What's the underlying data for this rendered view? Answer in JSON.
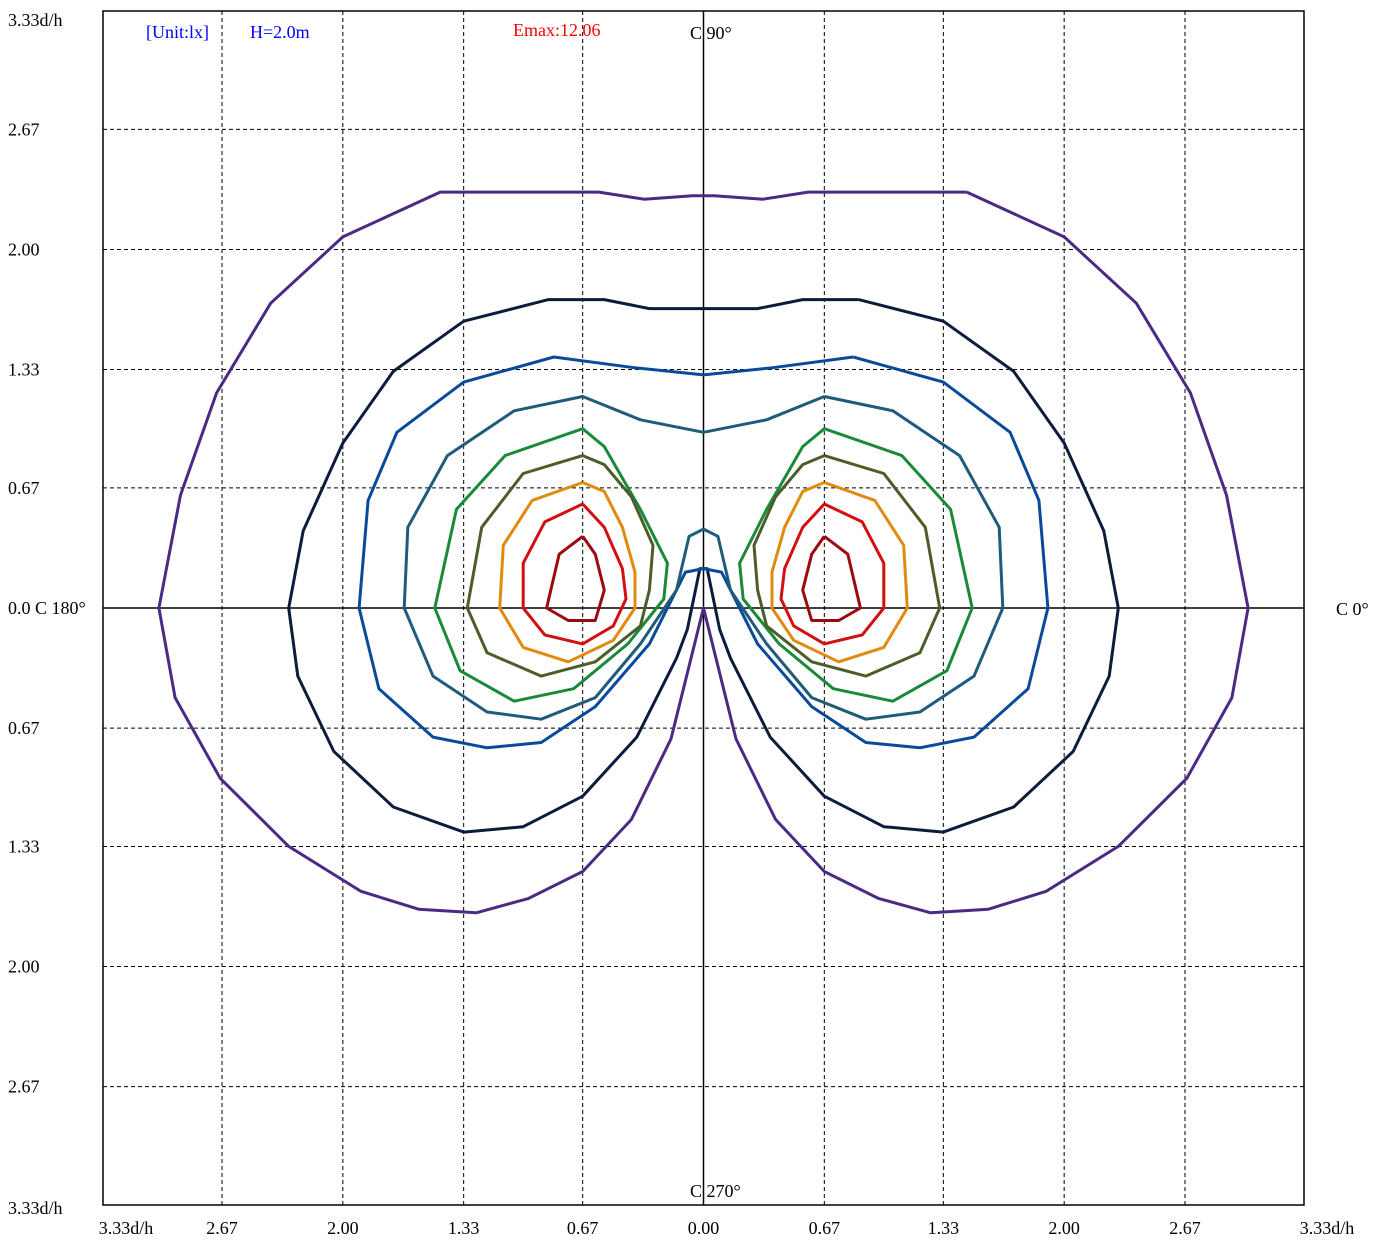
{
  "chart_data": {
    "type": "isolux_contour",
    "unit_label": "[Unit:lx]",
    "height_label": "H=2.0m",
    "emax_label": "Emax:12.06",
    "axis_end_label": "3.33d/h",
    "origin_label": "0.00",
    "c_labels": {
      "c0": "C 0°",
      "c90": "C 90°",
      "c180": "0.0 C 180°",
      "c270": "C 270°"
    },
    "ticks": [
      -3.33,
      -2.67,
      -2.0,
      -1.33,
      -0.67,
      0.0,
      0.67,
      1.33,
      2.0,
      2.67,
      3.33
    ],
    "tick_labels_y": [
      "3.33d/h",
      "2.67",
      "2.00",
      "1.33",
      "0.67",
      "0.0 C 180°",
      "0.67",
      "1.33",
      "2.00",
      "2.67",
      "3.33d/h"
    ],
    "tick_labels_x": [
      "3.33d/h",
      "2.67",
      "2.00",
      "1.33",
      "0.67",
      "0.00",
      "0.67",
      "1.33",
      "2.00",
      "2.67",
      "3.33d/h"
    ],
    "xlim": [
      -3.33,
      3.33
    ],
    "ylim": [
      -3.33,
      3.33
    ],
    "grid": true,
    "contours": [
      {
        "color": "#4b2a84",
        "points": [
          [
            1.46,
            2.32
          ],
          [
            0.58,
            2.32
          ],
          [
            0.33,
            2.28
          ],
          [
            0.06,
            2.3
          ],
          [
            -0.06,
            2.3
          ],
          [
            -0.33,
            2.28
          ],
          [
            -0.58,
            2.32
          ],
          [
            -1.46,
            2.32
          ],
          [
            -2.0,
            2.07
          ],
          [
            -2.4,
            1.7
          ],
          [
            -2.7,
            1.2
          ],
          [
            -2.9,
            0.63
          ],
          [
            -3.02,
            0.0
          ],
          [
            -2.93,
            -0.5
          ],
          [
            -2.68,
            -0.95
          ],
          [
            -2.3,
            -1.33
          ],
          [
            -1.9,
            -1.58
          ],
          [
            -1.58,
            -1.68
          ],
          [
            -1.26,
            -1.7
          ],
          [
            -0.97,
            -1.62
          ],
          [
            -0.67,
            -1.47
          ],
          [
            -0.4,
            -1.18
          ],
          [
            -0.18,
            -0.73
          ],
          [
            0.0,
            0.0
          ],
          [
            0.18,
            -0.73
          ],
          [
            0.4,
            -1.18
          ],
          [
            0.67,
            -1.47
          ],
          [
            0.97,
            -1.62
          ],
          [
            1.26,
            -1.7
          ],
          [
            1.58,
            -1.68
          ],
          [
            1.9,
            -1.58
          ],
          [
            2.3,
            -1.33
          ],
          [
            2.68,
            -0.95
          ],
          [
            2.93,
            -0.5
          ],
          [
            3.02,
            0.0
          ],
          [
            2.9,
            0.63
          ],
          [
            2.7,
            1.2
          ],
          [
            2.4,
            1.7
          ],
          [
            2.0,
            2.07
          ],
          [
            1.46,
            2.32
          ]
        ]
      },
      {
        "color": "#0d1b3c",
        "points": [
          [
            0.86,
            1.72
          ],
          [
            0.55,
            1.72
          ],
          [
            0.3,
            1.67
          ],
          [
            0.0,
            1.67
          ],
          [
            -0.3,
            1.67
          ],
          [
            -0.55,
            1.72
          ],
          [
            -0.86,
            1.72
          ],
          [
            -1.33,
            1.6
          ],
          [
            -1.72,
            1.32
          ],
          [
            -2.0,
            0.92
          ],
          [
            -2.22,
            0.43
          ],
          [
            -2.3,
            0.0
          ],
          [
            -2.25,
            -0.38
          ],
          [
            -2.05,
            -0.8
          ],
          [
            -1.72,
            -1.11
          ],
          [
            -1.33,
            -1.25
          ],
          [
            -1.0,
            -1.22
          ],
          [
            -0.67,
            -1.05
          ],
          [
            -0.37,
            -0.72
          ],
          [
            -0.15,
            -0.28
          ],
          [
            -0.09,
            -0.12
          ],
          [
            -0.02,
            0.22
          ],
          [
            0.0,
            0.22
          ],
          [
            0.02,
            0.22
          ],
          [
            0.09,
            -0.12
          ],
          [
            0.15,
            -0.28
          ],
          [
            0.37,
            -0.72
          ],
          [
            0.67,
            -1.05
          ],
          [
            1.0,
            -1.22
          ],
          [
            1.33,
            -1.25
          ],
          [
            1.72,
            -1.11
          ],
          [
            2.05,
            -0.8
          ],
          [
            2.25,
            -0.38
          ],
          [
            2.3,
            0.0
          ],
          [
            2.22,
            0.43
          ],
          [
            2.0,
            0.92
          ],
          [
            1.72,
            1.32
          ],
          [
            1.33,
            1.6
          ],
          [
            0.86,
            1.72
          ]
        ]
      },
      {
        "color": "#0a4a9a",
        "points": [
          [
            0.83,
            1.4
          ],
          [
            0.38,
            1.34
          ],
          [
            0.0,
            1.3
          ],
          [
            -0.38,
            1.34
          ],
          [
            -0.83,
            1.4
          ],
          [
            -1.33,
            1.26
          ],
          [
            -1.7,
            0.98
          ],
          [
            -1.86,
            0.6
          ],
          [
            -1.91,
            0.0
          ],
          [
            -1.8,
            -0.45
          ],
          [
            -1.5,
            -0.72
          ],
          [
            -1.2,
            -0.78
          ],
          [
            -0.9,
            -0.75
          ],
          [
            -0.6,
            -0.55
          ],
          [
            -0.3,
            -0.2
          ],
          [
            -0.1,
            0.2
          ],
          [
            0.0,
            0.22
          ],
          [
            0.1,
            0.2
          ],
          [
            0.3,
            -0.2
          ],
          [
            0.6,
            -0.55
          ],
          [
            0.9,
            -0.75
          ],
          [
            1.2,
            -0.78
          ],
          [
            1.5,
            -0.72
          ],
          [
            1.8,
            -0.45
          ],
          [
            1.91,
            0.0
          ],
          [
            1.86,
            0.6
          ],
          [
            1.7,
            0.98
          ],
          [
            1.33,
            1.26
          ],
          [
            0.83,
            1.4
          ]
        ]
      },
      {
        "color": "#1f5b7a",
        "points": [
          [
            0.67,
            1.18
          ],
          [
            0.35,
            1.05
          ],
          [
            0.0,
            0.98
          ],
          [
            -0.35,
            1.05
          ],
          [
            -0.67,
            1.18
          ],
          [
            -1.05,
            1.1
          ],
          [
            -1.42,
            0.85
          ],
          [
            -1.64,
            0.45
          ],
          [
            -1.66,
            0.0
          ],
          [
            -1.5,
            -0.38
          ],
          [
            -1.2,
            -0.58
          ],
          [
            -0.9,
            -0.62
          ],
          [
            -0.6,
            -0.5
          ],
          [
            -0.35,
            -0.2
          ],
          [
            -0.15,
            0.1
          ],
          [
            -0.08,
            0.4
          ],
          [
            0.0,
            0.44
          ],
          [
            0.08,
            0.4
          ],
          [
            0.15,
            0.1
          ],
          [
            0.35,
            -0.2
          ],
          [
            0.6,
            -0.5
          ],
          [
            0.9,
            -0.62
          ],
          [
            1.2,
            -0.58
          ],
          [
            1.5,
            -0.38
          ],
          [
            1.66,
            0.0
          ],
          [
            1.64,
            0.45
          ],
          [
            1.42,
            0.85
          ],
          [
            1.05,
            1.1
          ],
          [
            0.67,
            1.18
          ]
        ]
      },
      {
        "color": "#1a8a3a",
        "points": [
          [
            -0.67,
            1.0
          ],
          [
            -1.1,
            0.85
          ],
          [
            -1.37,
            0.55
          ],
          [
            -1.49,
            0.0
          ],
          [
            -1.35,
            -0.35
          ],
          [
            -1.05,
            -0.52
          ],
          [
            -0.72,
            -0.45
          ],
          [
            -0.42,
            -0.2
          ],
          [
            -0.22,
            0.05
          ],
          [
            -0.2,
            0.25
          ],
          [
            -0.35,
            0.55
          ],
          [
            -0.55,
            0.9
          ],
          [
            -0.67,
            1.0
          ]
        ]
      },
      {
        "color": "#1a8a3a",
        "points": [
          [
            0.67,
            1.0
          ],
          [
            1.1,
            0.85
          ],
          [
            1.37,
            0.55
          ],
          [
            1.49,
            0.0
          ],
          [
            1.35,
            -0.35
          ],
          [
            1.05,
            -0.52
          ],
          [
            0.72,
            -0.45
          ],
          [
            0.42,
            -0.2
          ],
          [
            0.22,
            0.05
          ],
          [
            0.2,
            0.25
          ],
          [
            0.35,
            0.55
          ],
          [
            0.55,
            0.9
          ],
          [
            0.67,
            1.0
          ]
        ]
      },
      {
        "color": "#4b5e2a",
        "points": [
          [
            -0.67,
            0.85
          ],
          [
            -1.0,
            0.75
          ],
          [
            -1.23,
            0.45
          ],
          [
            -1.31,
            0.0
          ],
          [
            -1.2,
            -0.25
          ],
          [
            -0.9,
            -0.38
          ],
          [
            -0.6,
            -0.3
          ],
          [
            -0.35,
            -0.1
          ],
          [
            -0.3,
            0.1
          ],
          [
            -0.28,
            0.35
          ],
          [
            -0.4,
            0.62
          ],
          [
            -0.55,
            0.8
          ],
          [
            -0.67,
            0.85
          ]
        ]
      },
      {
        "color": "#4b5e2a",
        "points": [
          [
            0.67,
            0.85
          ],
          [
            1.0,
            0.75
          ],
          [
            1.23,
            0.45
          ],
          [
            1.31,
            0.0
          ],
          [
            1.2,
            -0.25
          ],
          [
            0.9,
            -0.38
          ],
          [
            0.6,
            -0.3
          ],
          [
            0.35,
            -0.1
          ],
          [
            0.3,
            0.1
          ],
          [
            0.28,
            0.35
          ],
          [
            0.4,
            0.62
          ],
          [
            0.55,
            0.8
          ],
          [
            0.67,
            0.85
          ]
        ]
      },
      {
        "color": "#e08a10",
        "points": [
          [
            -0.67,
            0.7
          ],
          [
            -0.95,
            0.6
          ],
          [
            -1.11,
            0.35
          ],
          [
            -1.13,
            0.0
          ],
          [
            -1.0,
            -0.22
          ],
          [
            -0.75,
            -0.3
          ],
          [
            -0.5,
            -0.18
          ],
          [
            -0.38,
            0.0
          ],
          [
            -0.38,
            0.2
          ],
          [
            -0.45,
            0.45
          ],
          [
            -0.55,
            0.65
          ],
          [
            -0.67,
            0.7
          ]
        ]
      },
      {
        "color": "#e08a10",
        "points": [
          [
            0.67,
            0.7
          ],
          [
            0.95,
            0.6
          ],
          [
            1.11,
            0.35
          ],
          [
            1.13,
            0.0
          ],
          [
            1.0,
            -0.22
          ],
          [
            0.75,
            -0.3
          ],
          [
            0.5,
            -0.18
          ],
          [
            0.38,
            0.0
          ],
          [
            0.38,
            0.2
          ],
          [
            0.45,
            0.45
          ],
          [
            0.55,
            0.65
          ],
          [
            0.67,
            0.7
          ]
        ]
      },
      {
        "color": "#d21010",
        "points": [
          [
            -0.67,
            0.58
          ],
          [
            -0.88,
            0.48
          ],
          [
            -1.0,
            0.25
          ],
          [
            -1.0,
            0.0
          ],
          [
            -0.88,
            -0.15
          ],
          [
            -0.67,
            -0.2
          ],
          [
            -0.5,
            -0.1
          ],
          [
            -0.43,
            0.05
          ],
          [
            -0.45,
            0.22
          ],
          [
            -0.55,
            0.45
          ],
          [
            -0.67,
            0.58
          ]
        ]
      },
      {
        "color": "#d21010",
        "points": [
          [
            0.67,
            0.58
          ],
          [
            0.88,
            0.48
          ],
          [
            1.0,
            0.25
          ],
          [
            1.0,
            0.0
          ],
          [
            0.88,
            -0.15
          ],
          [
            0.67,
            -0.2
          ],
          [
            0.5,
            -0.1
          ],
          [
            0.43,
            0.05
          ],
          [
            0.45,
            0.22
          ],
          [
            0.55,
            0.45
          ],
          [
            0.67,
            0.58
          ]
        ]
      },
      {
        "color": "#9a0a10",
        "points": [
          [
            -0.67,
            0.4
          ],
          [
            -0.8,
            0.3
          ],
          [
            -0.87,
            0.0
          ],
          [
            -0.75,
            -0.07
          ],
          [
            -0.6,
            -0.07
          ],
          [
            -0.55,
            0.1
          ],
          [
            -0.6,
            0.3
          ],
          [
            -0.67,
            0.4
          ]
        ]
      },
      {
        "color": "#9a0a10",
        "points": [
          [
            0.67,
            0.4
          ],
          [
            0.8,
            0.3
          ],
          [
            0.87,
            0.0
          ],
          [
            0.75,
            -0.07
          ],
          [
            0.6,
            -0.07
          ],
          [
            0.55,
            0.1
          ],
          [
            0.6,
            0.3
          ],
          [
            0.67,
            0.4
          ]
        ]
      }
    ]
  }
}
